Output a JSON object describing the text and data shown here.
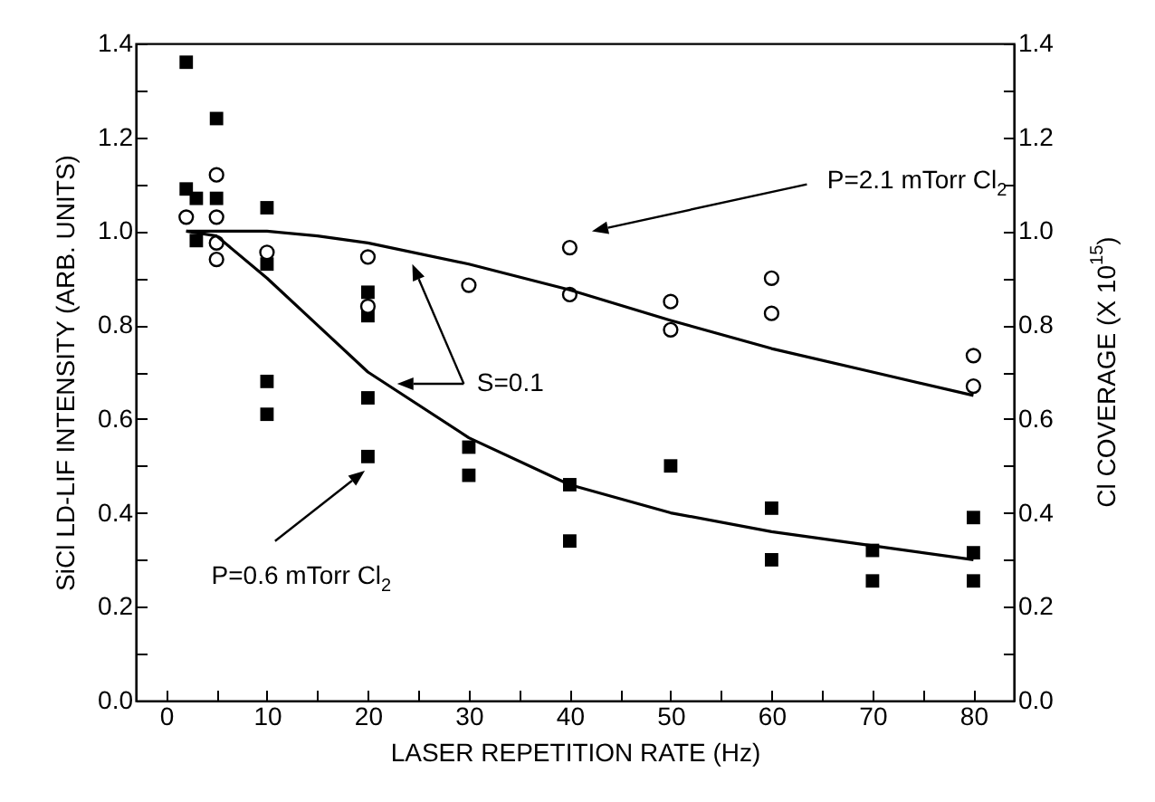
{
  "chart_data": {
    "type": "scatter",
    "xlabel": "LASER REPETITION RATE (Hz)",
    "ylabel": "SiCl LD-LIF INTENSITY (ARB. UNITS)",
    "y2label": "Cl COVERAGE (X 10$^{15}$)",
    "annotations": [
      "P=2.1 mTorr Cl$_{2}$",
      "S=0.1",
      "P=0.6 mTorr Cl$_{2}$"
    ],
    "series": [
      {
        "marker": "square",
        "color": "#000000",
        "x": [
          2,
          2,
          3,
          3,
          5,
          5,
          10,
          10,
          10,
          10,
          20,
          20,
          20,
          20,
          30,
          30,
          40,
          40,
          50,
          60,
          60,
          70,
          70,
          80,
          80,
          80
        ],
        "values": [
          1.36,
          1.09,
          1.07,
          0.98,
          1.24,
          1.07,
          1.05,
          0.93,
          0.68,
          0.61,
          0.87,
          0.82,
          0.645,
          0.52,
          0.54,
          0.48,
          0.46,
          0.34,
          0.5,
          0.41,
          0.3,
          0.32,
          0.255,
          0.39,
          0.315,
          0.255
        ]
      },
      {
        "marker": "circle",
        "color": "#000000",
        "x": [
          2,
          5,
          5,
          5,
          5,
          10,
          20,
          20,
          30,
          40,
          40,
          50,
          50,
          60,
          60,
          80,
          80
        ],
        "values": [
          1.03,
          1.12,
          1.03,
          0.975,
          0.94,
          0.955,
          0.945,
          0.84,
          0.885,
          0.965,
          0.865,
          0.85,
          0.79,
          0.9,
          0.825,
          0.735,
          0.67
        ]
      },
      {
        "type": "line",
        "marker": "none",
        "color": "#000000",
        "x": [
          2,
          5,
          10,
          15,
          20,
          30,
          40,
          50,
          60,
          70,
          80
        ],
        "values": [
          1.0,
          1.0,
          1.0,
          0.99,
          0.975,
          0.93,
          0.875,
          0.81,
          0.75,
          0.7,
          0.65
        ]
      },
      {
        "type": "line",
        "marker": "none",
        "color": "#000000",
        "x": [
          2,
          5,
          10,
          15,
          20,
          30,
          40,
          50,
          60,
          70,
          80
        ],
        "values": [
          1.0,
          0.99,
          0.9,
          0.8,
          0.7,
          0.56,
          0.46,
          0.4,
          0.36,
          0.33,
          0.3
        ]
      }
    ],
    "xlim": [
      -3,
      84
    ],
    "xticks": [
      0,
      {
        "value": 5,
        "label": null
      },
      10,
      {
        "value": 15,
        "label": null
      },
      20,
      {
        "value": 25,
        "label": null
      },
      30,
      {
        "value": 35,
        "label": null
      },
      40,
      {
        "value": 45,
        "label": null
      },
      50,
      {
        "value": 55,
        "label": null
      },
      60,
      {
        "value": 65,
        "label": null
      },
      70,
      {
        "value": 75,
        "label": null
      },
      80
    ],
    "ylim": [
      0,
      1.4
    ],
    "yticks": [
      {
        "value": 0,
        "label": "0.0"
      },
      {
        "value": 0.1,
        "label": null
      },
      0.2,
      {
        "value": 0.3,
        "label": null
      },
      0.4,
      {
        "value": 0.5,
        "label": null
      },
      0.6,
      {
        "value": 0.7,
        "label": null
      },
      0.8,
      {
        "value": 0.9,
        "label": null
      },
      {
        "value": 1,
        "label": "1.0"
      },
      {
        "value": 1.1,
        "label": null
      },
      1.2,
      {
        "value": 1.3,
        "label": null
      },
      1.4
    ],
    "y2lim": [
      0,
      1.4
    ],
    "y2ticks": [
      {
        "value": 0,
        "label": "0.0"
      },
      {
        "value": 0.1,
        "label": null
      },
      0.2,
      {
        "value": 0.3,
        "label": null
      },
      0.4,
      {
        "value": 0.5,
        "label": null
      },
      0.6,
      {
        "value": 0.7,
        "label": null
      },
      0.8,
      {
        "value": 0.9,
        "label": null
      },
      {
        "value": 1,
        "label": "1.0"
      },
      {
        "value": 1.1,
        "label": null
      },
      1.2,
      {
        "value": 1.3,
        "label": null
      },
      1.4
    ],
    "grid": false,
    "legend": false
  }
}
